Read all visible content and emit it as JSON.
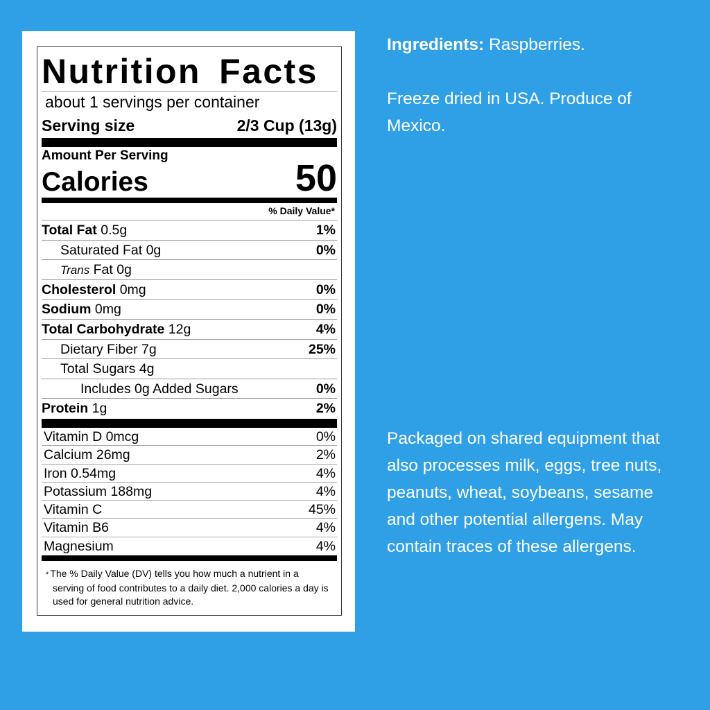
{
  "label": {
    "title": "Nutrition Facts",
    "servings_per_container": "about 1 servings per container",
    "serving_size_label": "Serving size",
    "serving_size_value": "2/3 Cup (13g)",
    "amount_per_serving": "Amount Per Serving",
    "calories_label": "Calories",
    "calories_value": "50",
    "daily_value_header": "% Daily Value*",
    "nutrients": [
      {
        "name": "Total Fat",
        "amount": "0.5g",
        "dv": "1%"
      },
      {
        "name": "Saturated Fat",
        "amount": "0g",
        "dv": "0%"
      },
      {
        "name": "Trans",
        "suffix": "Fat 0g",
        "dv": ""
      },
      {
        "name": "Cholesterol",
        "amount": "0mg",
        "dv": "0%"
      },
      {
        "name": "Sodium",
        "amount": "0mg",
        "dv": "0%"
      },
      {
        "name": "Total Carbohydrate",
        "amount": "12g",
        "dv": "4%"
      },
      {
        "name": "Dietary Fiber",
        "amount": "7g",
        "dv": "25%"
      },
      {
        "name": "Total Sugars",
        "amount": "4g",
        "dv": ""
      },
      {
        "name": "Includes 0g Added Sugars",
        "amount": "",
        "dv": "0%"
      },
      {
        "name": "Protein",
        "amount": "1g",
        "dv": "2%"
      }
    ],
    "vitamins": [
      {
        "name": "Vitamin D 0mcg",
        "dv": "0%"
      },
      {
        "name": "Calcium 26mg",
        "dv": "2%"
      },
      {
        "name": "Iron 0.54mg",
        "dv": "4%"
      },
      {
        "name": "Potassium 188mg",
        "dv": "4%"
      },
      {
        "name": "Vitamin C",
        "dv": "45%"
      },
      {
        "name": "Vitamin B6",
        "dv": "4%"
      },
      {
        "name": "Magnesium",
        "dv": "4%"
      }
    ],
    "footnote_star": "*",
    "footnote": "The % Daily Value (DV) tells you how much a nutrient in a serving of food contributes to a daily diet. 2,000 calories a day is used for general nutrition advice."
  },
  "side": {
    "ingredients_label": "Ingredients:",
    "ingredients_value": "Raspberries.",
    "origin": "Freeze dried in USA. Produce of Mexico.",
    "allergen": "Packaged on shared equipment that also processes milk, eggs, tree nuts, peanuts, wheat, soybeans, sesame and other potential allergens. May contain traces of these allergens."
  },
  "colors": {
    "background": "#2fa0e5",
    "panel": "#ffffff",
    "text": "#000000"
  }
}
